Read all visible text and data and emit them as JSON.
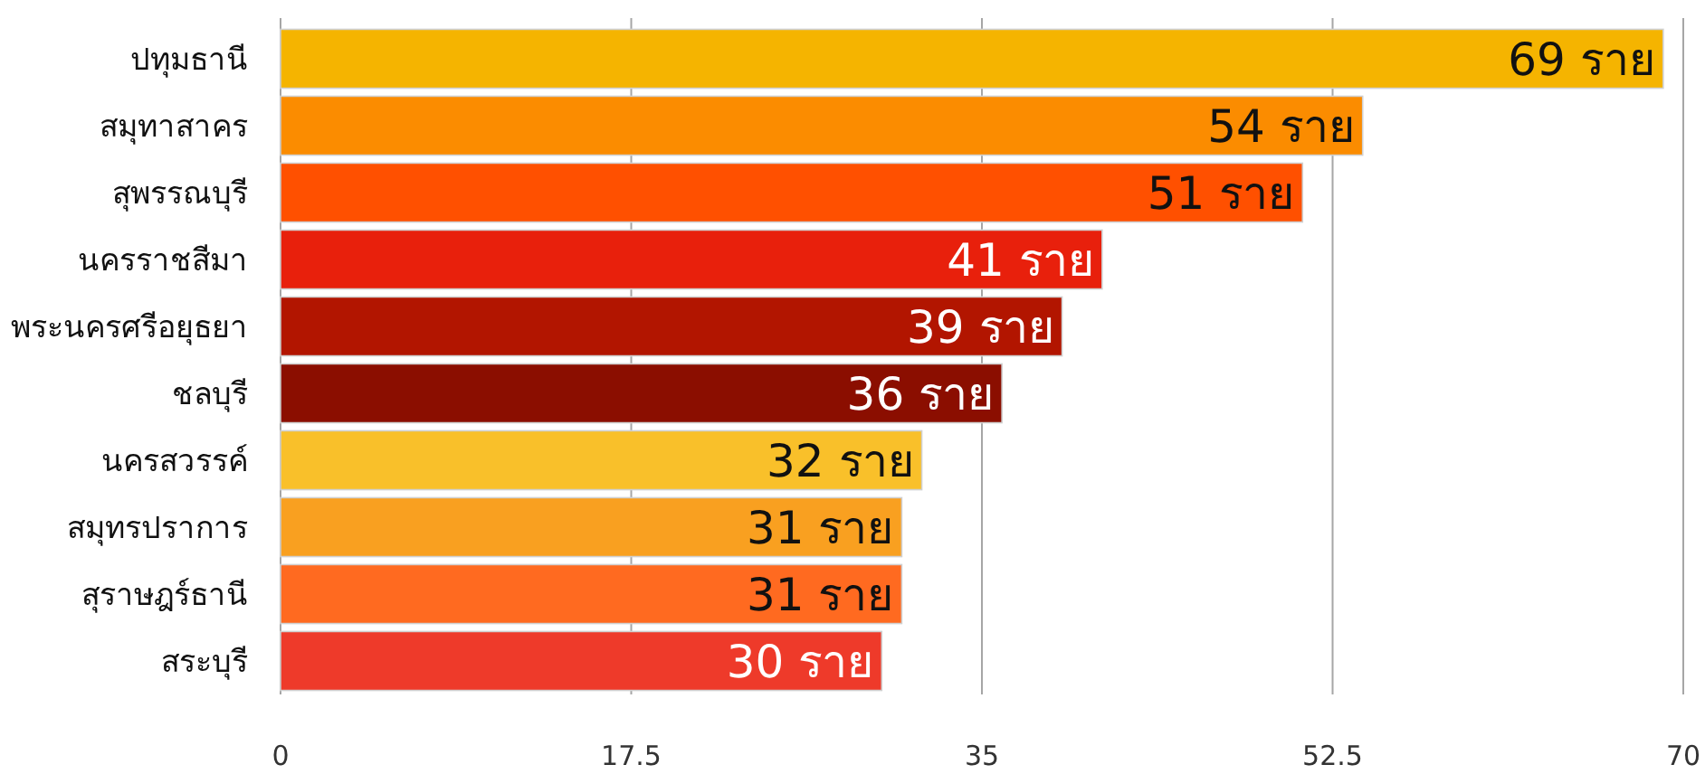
{
  "chart_data": {
    "type": "bar",
    "orientation": "horizontal",
    "categories": [
      "ปทุมธานี",
      "สมุทาสาคร",
      "สุพรรณบุรี",
      "นครราชสีมา",
      "พระนครศรีอยุธยา",
      "ชลบุรี",
      "นครสวรรค์",
      "สมุทรปราการ",
      "สุราษฎร์ธานี",
      "สระบุรี"
    ],
    "values": [
      69,
      54,
      51,
      41,
      39,
      36,
      32,
      31,
      31,
      30
    ],
    "value_labels": [
      "69 ราย",
      "54 ราย",
      "51 ราย",
      "41 ราย",
      "39 ราย",
      "36 ราย",
      "32 ราย",
      "31 ราย",
      "31 ราย",
      "30 ราย"
    ],
    "colors": [
      "#f5b400",
      "#fb8c00",
      "#ff5000",
      "#e8200c",
      "#b21500",
      "#8b0e00",
      "#f9c02a",
      "#f9a020",
      "#ff6a20",
      "#ee3a2a"
    ],
    "xlim": [
      0,
      70
    ],
    "xticks": [
      0,
      17.5,
      35,
      52.5,
      70
    ],
    "grid": "x"
  }
}
